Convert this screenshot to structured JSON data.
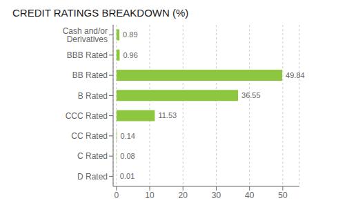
{
  "chart_data": {
    "type": "bar",
    "orientation": "horizontal",
    "title": "CREDIT RATINGS BREAKDOWN (%)",
    "categories": [
      "Cash and/or Derivatives",
      "BBB Rated",
      "BB Rated",
      "B Rated",
      "CCC Rated",
      "CC Rated",
      "C Rated",
      "D Rated"
    ],
    "values": [
      0.89,
      0.96,
      49.84,
      36.55,
      11.53,
      0.14,
      0.08,
      0.01
    ],
    "color": "#8dc63f",
    "xlim": [
      -1,
      55
    ],
    "xticks": [
      0,
      10,
      20,
      30,
      40,
      50
    ],
    "grid": true,
    "data_labels": true
  }
}
